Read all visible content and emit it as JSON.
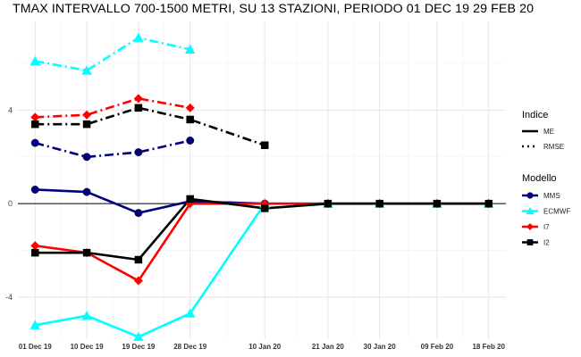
{
  "chart_data": {
    "type": "line",
    "title": "TMAX INTERVALLO 700-1500 METRI, SU 13 STAZIONI, PERIODO 01 DEC 19   29 FEB 20",
    "x_dates": [
      "2019-12-01",
      "2019-12-10",
      "2019-12-19",
      "2019-12-28",
      "2020-01-10",
      "2020-01-21",
      "2020-01-30",
      "2020-02-09",
      "2020-02-18"
    ],
    "x_tick_labels": [
      "01 Dec 19",
      "10 Dec 19",
      "19 Dec 19",
      "28 Dec 19",
      "10 Jan 20",
      "21 Jan 20",
      "30 Jan 20",
      "09 Feb 20",
      "18 Feb 20"
    ],
    "y_ticks": [
      -4,
      0,
      4
    ],
    "ylim": [
      -5.8,
      7.8
    ],
    "xlim": [
      "2019-11-28",
      "2020-02-21"
    ],
    "grid": true,
    "zero_line": true,
    "legend": {
      "placement": "right",
      "indice_title": "Indice",
      "indice_items": [
        {
          "label": "ME",
          "dash": "solid"
        },
        {
          "label": "RMSE",
          "dash": "dotdash"
        }
      ],
      "modello_title": "Modello",
      "modello_items": [
        {
          "label": "MMS",
          "color": "#00007F",
          "shape": "circle"
        },
        {
          "label": "ECMWF",
          "color": "#00FFFF",
          "shape": "triangle"
        },
        {
          "label": "I7",
          "color": "#FF0000",
          "shape": "diamond"
        },
        {
          "label": "I2",
          "color": "#000000",
          "shape": "square"
        }
      ]
    },
    "series": [
      {
        "model": "MMS",
        "indice": "ME",
        "color": "#00007F",
        "shape": "circle",
        "values": [
          0.6,
          0.5,
          -0.4,
          0.1,
          0.0,
          0.0,
          0.0,
          0.0,
          0.0
        ]
      },
      {
        "model": "ECMWF",
        "indice": "ME",
        "color": "#00FFFF",
        "shape": "triangle",
        "values": [
          -5.2,
          -4.8,
          -5.7,
          -4.7,
          0.0,
          0.0,
          0.0,
          0.0,
          0.0
        ]
      },
      {
        "model": "I7",
        "indice": "ME",
        "color": "#FF0000",
        "shape": "diamond",
        "values": [
          -1.8,
          -2.1,
          -3.3,
          0.0,
          0.0,
          0.0,
          0.0,
          0.0,
          0.0
        ]
      },
      {
        "model": "I2",
        "indice": "ME",
        "color": "#000000",
        "shape": "square",
        "values": [
          -2.1,
          -2.1,
          -2.4,
          0.2,
          -0.2,
          0.0,
          0.0,
          0.0,
          0.0
        ]
      },
      {
        "model": "MMS",
        "indice": "RMSE",
        "color": "#00007F",
        "shape": "circle",
        "values": [
          2.6,
          2.0,
          2.2,
          2.7,
          null,
          null,
          null,
          null,
          null
        ]
      },
      {
        "model": "ECMWF",
        "indice": "RMSE",
        "color": "#00FFFF",
        "shape": "triangle",
        "values": [
          6.1,
          5.7,
          7.1,
          6.6,
          null,
          null,
          null,
          null,
          null
        ]
      },
      {
        "model": "I7",
        "indice": "RMSE",
        "color": "#FF0000",
        "shape": "diamond",
        "values": [
          3.7,
          3.8,
          4.5,
          4.1,
          null,
          null,
          null,
          null,
          null
        ]
      },
      {
        "model": "I2",
        "indice": "RMSE",
        "color": "#000000",
        "shape": "square",
        "values": [
          3.4,
          3.4,
          4.1,
          3.6,
          2.5,
          null,
          null,
          null,
          null
        ]
      }
    ]
  }
}
